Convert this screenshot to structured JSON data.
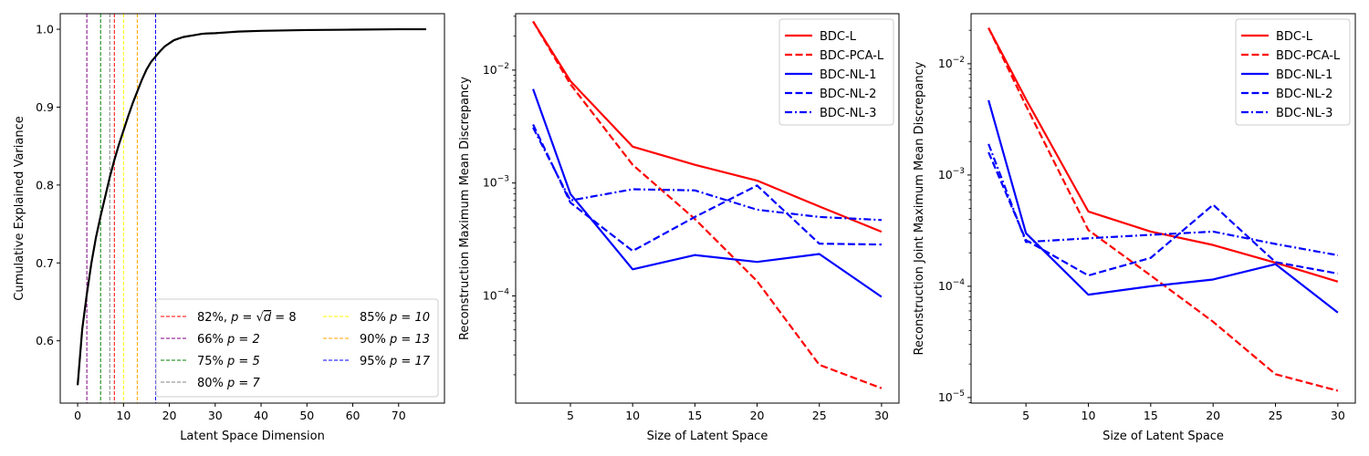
{
  "chart_data": [
    {
      "type": "line",
      "xlabel": "Latent Space Dimension",
      "ylabel": "Cumulative Explained Variance",
      "xlim": [
        -3.8,
        80
      ],
      "ylim": [
        0.52,
        1.02
      ],
      "xticks": [
        0,
        10,
        20,
        30,
        40,
        50,
        60,
        70
      ],
      "yticks": [
        0.6,
        0.7,
        0.8,
        0.9,
        1.0
      ],
      "ytick_labels": [
        "0.6",
        "0.7",
        "0.8",
        "0.9",
        "1.0"
      ],
      "curve": {
        "x": [
          0,
          1,
          2,
          3,
          4,
          5,
          6,
          7,
          8,
          9,
          10,
          11,
          12,
          13,
          14,
          15,
          16,
          17,
          18,
          19,
          20,
          21,
          22,
          23,
          24,
          25,
          26,
          27,
          28,
          30,
          35,
          40,
          50,
          60,
          70,
          76
        ],
        "y": [
          0.543,
          0.615,
          0.66,
          0.7,
          0.733,
          0.76,
          0.785,
          0.81,
          0.832,
          0.852,
          0.87,
          0.888,
          0.905,
          0.92,
          0.935,
          0.948,
          0.958,
          0.965,
          0.972,
          0.978,
          0.982,
          0.986,
          0.988,
          0.99,
          0.991,
          0.992,
          0.993,
          0.994,
          0.9945,
          0.995,
          0.997,
          0.998,
          0.999,
          0.9995,
          1.0,
          1.0
        ]
      },
      "vlines": [
        {
          "x": 8,
          "color": "#ff0000",
          "pct": "82%",
          "math": "p = ",
          "sqrt_d": true,
          "value": "8"
        },
        {
          "x": 2,
          "color": "#800080",
          "pct": "66%",
          "math": "p = 2"
        },
        {
          "x": 5,
          "color": "#008000",
          "pct": "75%",
          "math": "p = 5"
        },
        {
          "x": 7,
          "color": "#808080",
          "pct": "80%",
          "math": "p = 7"
        },
        {
          "x": 10,
          "color": "#ffff00",
          "pct": "85%",
          "math": "p = 10"
        },
        {
          "x": 13,
          "color": "#ffa500",
          "pct": "90%",
          "math": "p = 13"
        },
        {
          "x": 17,
          "color": "#0000ff",
          "pct": "95%",
          "math": "p = 17"
        }
      ],
      "legend_position": "lower right"
    },
    {
      "type": "line",
      "yscale": "log",
      "xlabel": "Size of Latent Space",
      "ylabel": "Reconstruction Maximum Mean Discrepancy",
      "xlim": [
        0.6,
        31.4
      ],
      "ylim_log10": [
        -4.95,
        -1.5
      ],
      "xticks": [
        5,
        10,
        15,
        20,
        25,
        30
      ],
      "yticks_log10": [
        -4,
        -3,
        -2
      ],
      "x": [
        2,
        5,
        10,
        15,
        20,
        25,
        30
      ],
      "series": [
        {
          "name": "BDC-L",
          "color": "#ff0000",
          "style": "solid",
          "values": [
            0.027,
            0.008,
            0.0021,
            0.00145,
            0.00105,
            0.00062,
            0.00037
          ]
        },
        {
          "name": "BDC-PCA-L",
          "color": "#ff0000",
          "style": "dashed",
          "values": [
            0.027,
            0.0075,
            0.00145,
            0.00048,
            0.000135,
            2.45e-05,
            1.52e-05
          ]
        },
        {
          "name": "BDC-NL-1",
          "color": "#0000ff",
          "style": "solid",
          "values": [
            0.0068,
            0.0008,
            0.000172,
            0.00023,
            0.0002,
            0.000235,
            9.8e-05
          ]
        },
        {
          "name": "BDC-NL-2",
          "color": "#0000ff",
          "style": "dashed",
          "values": [
            0.0033,
            0.00067,
            0.00025,
            0.0005,
            0.00095,
            0.00029,
            0.000285
          ]
        },
        {
          "name": "BDC-NL-3",
          "color": "#0000ff",
          "style": "dashdot",
          "values": [
            0.0031,
            0.0007,
            0.00088,
            0.00086,
            0.00058,
            0.0005,
            0.00047
          ]
        }
      ],
      "legend_position": "upper right"
    },
    {
      "type": "line",
      "yscale": "log",
      "xlabel": "Size of Latent Space",
      "ylabel": "Reconstruction Joint Maximum Mean Discrepancy",
      "xlim": [
        0.6,
        31.4
      ],
      "ylim_log10": [
        -5.05,
        -1.55
      ],
      "xticks": [
        5,
        10,
        15,
        20,
        25,
        30
      ],
      "yticks_log10": [
        -5,
        -4,
        -3,
        -2
      ],
      "x": [
        2,
        5,
        10,
        15,
        20,
        25,
        30
      ],
      "series": [
        {
          "name": "BDC-L",
          "color": "#ff0000",
          "style": "solid",
          "values": [
            0.021,
            0.0048,
            0.00047,
            0.00031,
            0.000235,
            0.000163,
            0.00011
          ]
        },
        {
          "name": "BDC-PCA-L",
          "color": "#ff0000",
          "style": "dashed",
          "values": [
            0.021,
            0.0042,
            0.00032,
            0.000125,
            4.8e-05,
            1.62e-05,
            1.15e-05
          ]
        },
        {
          "name": "BDC-NL-1",
          "color": "#0000ff",
          "style": "solid",
          "values": [
            0.0047,
            0.0003,
            8.4e-05,
            0.0001,
            0.000115,
            0.000158,
            5.8e-05
          ]
        },
        {
          "name": "BDC-NL-2",
          "color": "#0000ff",
          "style": "dashed",
          "values": [
            0.0016,
            0.00026,
            0.000125,
            0.00018,
            0.00054,
            0.000165,
            0.00013
          ]
        },
        {
          "name": "BDC-NL-3",
          "color": "#0000ff",
          "style": "dashdot",
          "values": [
            0.0019,
            0.00025,
            0.00027,
            0.00029,
            0.00031,
            0.00024,
            0.00019
          ]
        }
      ],
      "legend_position": "upper right"
    }
  ]
}
